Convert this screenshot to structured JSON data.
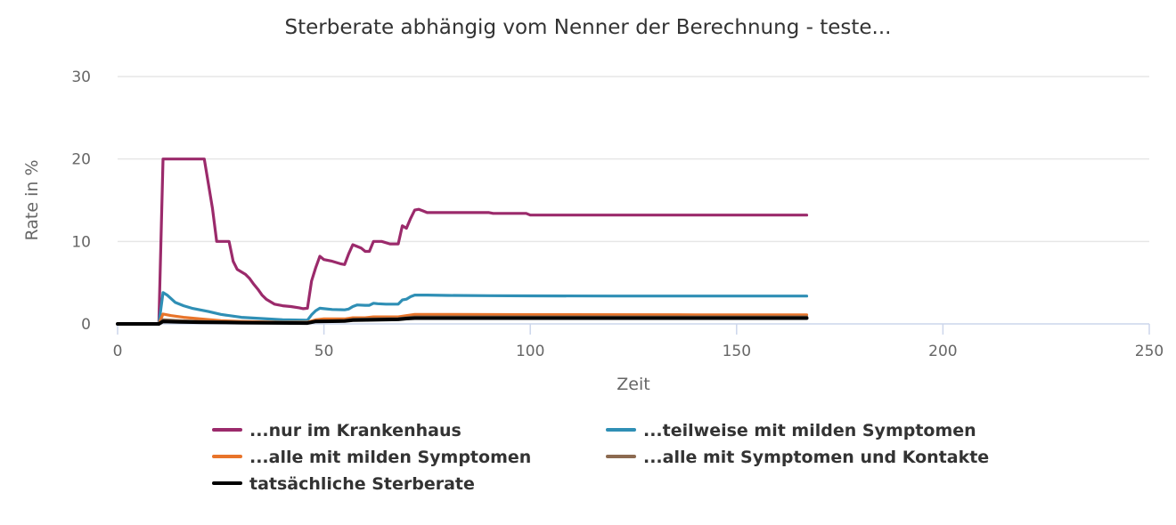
{
  "chart_data": {
    "type": "line",
    "title": "Sterberate abhängig vom Nenner der Berechnung - teste...",
    "xlabel": "Zeit",
    "ylabel": "Rate in %",
    "xlim": [
      0,
      250
    ],
    "ylim": [
      0,
      30
    ],
    "x_ticks": [
      "0",
      "50",
      "100",
      "150",
      "200",
      "250"
    ],
    "y_ticks": [
      "0",
      "10",
      "20",
      "30"
    ],
    "grid": true,
    "legend_position": "bottom",
    "series": [
      {
        "name": "...nur im Krankenhaus",
        "color": "#9b2a6b",
        "x": [
          0,
          10,
          11,
          20,
          21,
          22,
          23,
          24,
          27,
          28,
          29,
          31,
          32,
          33,
          34,
          35,
          36,
          38,
          40,
          42,
          44,
          45,
          46,
          47,
          48,
          49,
          50,
          52,
          54,
          55,
          56,
          57,
          58,
          59,
          60,
          61,
          62,
          63,
          64,
          66,
          67,
          68,
          69,
          70,
          71,
          72,
          73,
          74,
          75,
          80,
          90,
          91,
          95,
          98,
          99,
          100,
          110,
          120,
          140,
          160,
          167
        ],
        "y": [
          0,
          0,
          20,
          20,
          20,
          17,
          14,
          10,
          10,
          7.6,
          6.6,
          6,
          5.5,
          4.8,
          4.2,
          3.5,
          3,
          2.4,
          2.2,
          2.1,
          1.95,
          1.85,
          1.9,
          5.2,
          6.8,
          8.2,
          7.8,
          7.6,
          7.3,
          7.2,
          8.5,
          9.6,
          9.4,
          9.2,
          8.8,
          8.8,
          10,
          10,
          10,
          9.7,
          9.7,
          9.7,
          11.9,
          11.6,
          12.8,
          13.8,
          13.9,
          13.7,
          13.5,
          13.5,
          13.5,
          13.4,
          13.4,
          13.4,
          13.4,
          13.2,
          13.2,
          13.2,
          13.2,
          13.2,
          13.2
        ]
      },
      {
        "name": "...teilweise mit milden Symptomen",
        "color": "#2f8fb5",
        "x": [
          0,
          10,
          11,
          12,
          14,
          16,
          18,
          22,
          25,
          30,
          40,
          46,
          47,
          48,
          49,
          50,
          52,
          55,
          56,
          57,
          58,
          60,
          61,
          62,
          63,
          65,
          68,
          69,
          70,
          71,
          72,
          73,
          75,
          80,
          90,
          100,
          120,
          140,
          160,
          167
        ],
        "y": [
          0,
          0,
          3.8,
          3.5,
          2.6,
          2.2,
          1.9,
          1.5,
          1.15,
          0.8,
          0.5,
          0.45,
          1.1,
          1.6,
          1.9,
          1.85,
          1.75,
          1.7,
          1.8,
          2.1,
          2.3,
          2.25,
          2.25,
          2.5,
          2.45,
          2.4,
          2.4,
          2.9,
          3.0,
          3.3,
          3.5,
          3.5,
          3.5,
          3.45,
          3.42,
          3.4,
          3.38,
          3.38,
          3.38,
          3.38
        ]
      },
      {
        "name": "...alle mit milden Symptomen",
        "color": "#e8742a",
        "x": [
          0,
          10,
          11,
          13,
          16,
          20,
          25,
          30,
          40,
          46,
          48,
          50,
          55,
          57,
          60,
          62,
          68,
          70,
          72,
          80,
          100,
          140,
          167
        ],
        "y": [
          0,
          0,
          1.2,
          1.0,
          0.8,
          0.6,
          0.4,
          0.3,
          0.2,
          0.2,
          0.5,
          0.6,
          0.6,
          0.75,
          0.75,
          0.85,
          0.85,
          1.0,
          1.15,
          1.15,
          1.12,
          1.1,
          1.1
        ]
      },
      {
        "name": "...alle mit Symptomen und Kontakte",
        "color": "#8c6a50",
        "x": [
          0,
          10,
          11,
          15,
          20,
          30,
          46,
          48,
          55,
          57,
          62,
          68,
          70,
          72,
          100,
          167
        ],
        "y": [
          0,
          0,
          0.5,
          0.4,
          0.3,
          0.2,
          0.15,
          0.35,
          0.4,
          0.55,
          0.6,
          0.65,
          0.75,
          0.85,
          0.85,
          0.85
        ]
      },
      {
        "name": "tatsächliche Sterberate",
        "color": "#000000",
        "x": [
          0,
          10,
          11,
          15,
          20,
          30,
          46,
          48,
          55,
          57,
          62,
          68,
          70,
          72,
          100,
          167
        ],
        "y": [
          0,
          0,
          0.3,
          0.25,
          0.2,
          0.15,
          0.1,
          0.3,
          0.35,
          0.45,
          0.5,
          0.55,
          0.65,
          0.7,
          0.7,
          0.7
        ]
      }
    ]
  }
}
